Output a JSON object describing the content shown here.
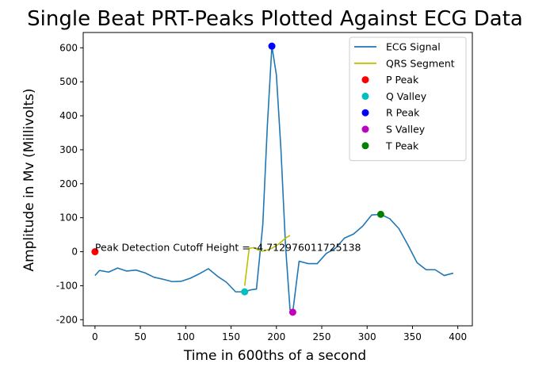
{
  "chart_data": {
    "type": "line",
    "title": "Single Beat PRT-Peaks Plotted Against ECG Data",
    "xlabel": "Time in 600ths of a second",
    "ylabel": "Amplitude in Mv (Millivolts)",
    "xlim": [
      -13,
      416
    ],
    "ylim": [
      -218,
      645
    ],
    "xticks": [
      0,
      50,
      100,
      150,
      200,
      250,
      300,
      350,
      400
    ],
    "yticks": [
      -200,
      -100,
      0,
      100,
      200,
      300,
      400,
      500,
      600
    ],
    "grid": false,
    "legend_position": "top-right",
    "series": [
      {
        "name": "ECG Signal",
        "kind": "line",
        "color": "#1f77b4",
        "x": [
          0,
          5,
          15,
          25,
          35,
          45,
          55,
          65,
          75,
          85,
          95,
          105,
          115,
          125,
          135,
          145,
          155,
          160,
          165,
          172,
          178,
          185,
          190,
          195,
          200,
          205,
          210,
          215,
          218,
          225,
          235,
          245,
          255,
          265,
          275,
          285,
          295,
          305,
          315,
          325,
          335,
          345,
          355,
          365,
          375,
          385,
          395
        ],
        "y": [
          -70,
          -55,
          -60,
          -48,
          -57,
          -54,
          -62,
          -75,
          -81,
          -88,
          -87,
          -78,
          -65,
          -50,
          -72,
          -90,
          -118,
          -118,
          -118,
          -112,
          -110,
          80,
          370,
          605,
          520,
          300,
          20,
          -170,
          -178,
          -28,
          -35,
          -35,
          -5,
          10,
          40,
          52,
          75,
          108,
          110,
          97,
          68,
          20,
          -32,
          -53,
          -53,
          -70,
          -63
        ]
      },
      {
        "name": "QRS Segment",
        "kind": "line",
        "color": "#bfbf00",
        "x": [
          165,
          170,
          175,
          180,
          185,
          190,
          195,
          200,
          205,
          210,
          215
        ],
        "y": [
          -100,
          10,
          12,
          5,
          2,
          5,
          10,
          18,
          28,
          40,
          48
        ]
      },
      {
        "name": "P Peak",
        "kind": "point",
        "color": "#ff0000",
        "x": [
          0
        ],
        "y": [
          0
        ]
      },
      {
        "name": "Q Valley",
        "kind": "point",
        "color": "#00bfbf",
        "x": [
          165
        ],
        "y": [
          -118
        ]
      },
      {
        "name": "R Peak",
        "kind": "point",
        "color": "#0000ff",
        "x": [
          195
        ],
        "y": [
          605
        ]
      },
      {
        "name": "S Valley",
        "kind": "point",
        "color": "#bf00bf",
        "x": [
          218
        ],
        "y": [
          -178
        ]
      },
      {
        "name": "T Peak",
        "kind": "point",
        "color": "#008000",
        "x": [
          315
        ],
        "y": [
          110
        ]
      }
    ],
    "annotation": {
      "text": "Peak Detection Cutoff Height = -4.712976011725138",
      "x": 0,
      "y": 0
    }
  }
}
